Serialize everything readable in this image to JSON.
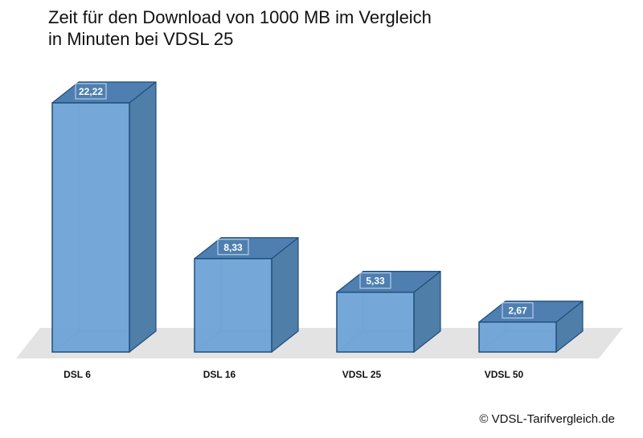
{
  "chart_data": {
    "type": "bar",
    "title_line1": "Zeit für den Download von 1000 MB im Vergleich",
    "title_line2": "in Minuten bei VDSL 25",
    "categories": [
      "DSL 6",
      "DSL 16",
      "VDSL 25",
      "VDSL 50"
    ],
    "values": [
      22.22,
      8.33,
      5.33,
      2.67
    ],
    "value_labels": [
      "22,22",
      "8,33",
      "5,33",
      "2,67"
    ],
    "xlabel": "",
    "ylabel": "",
    "ylim": [
      0,
      22.22
    ],
    "grid": false,
    "legend": "none",
    "style": "3d-columns"
  },
  "colors": {
    "front": "#6ea3d6",
    "top": "#4f7fb0",
    "side": "#4f7fa8",
    "edge": "#1f4e7e",
    "floor": "#e3e3e3",
    "label_bg": "#4f7fb0"
  },
  "footer": {
    "copyright": "© VDSL-Tarifvergleich.de"
  }
}
